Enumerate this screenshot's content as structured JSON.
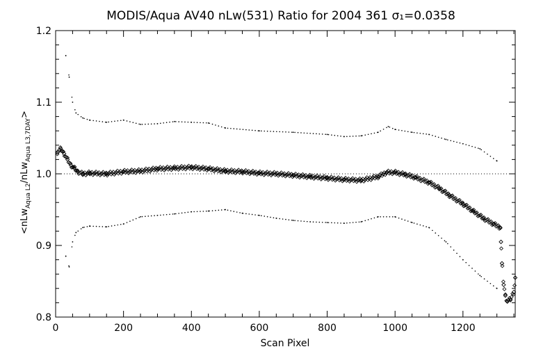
{
  "chart_data": {
    "type": "scatter",
    "title": "MODIS/Aqua AV40 nLw(531) Ratio for 2004 361 σ₁=0.0358",
    "xlabel": "Scan Pixel",
    "ylabel": "<nLw_Aqua L2/nLw_Aqua L3,7DAY>",
    "xlim": [
      0,
      1354
    ],
    "ylim": [
      0.8,
      1.2
    ],
    "xticks": [
      0,
      200,
      400,
      600,
      800,
      1000,
      1200
    ],
    "yticks": [
      0.8,
      0.9,
      1.0,
      1.1,
      1.2
    ],
    "ytick_labels": [
      "0.8",
      "0.9",
      "1.0",
      "1.1",
      "1.2"
    ],
    "reference_line_y": 1.0,
    "grid": false,
    "series": [
      {
        "role": "ratio",
        "marker": "diamond",
        "points": [
          [
            5,
            1.03
          ],
          [
            15,
            1.035
          ],
          [
            25,
            1.028
          ],
          [
            35,
            1.02
          ],
          [
            45,
            1.012
          ],
          [
            55,
            1.008
          ],
          [
            65,
            1.003
          ],
          [
            80,
            1.0
          ],
          [
            100,
            1.001
          ],
          [
            150,
            1.0
          ],
          [
            200,
            1.003
          ],
          [
            250,
            1.004
          ],
          [
            300,
            1.007
          ],
          [
            350,
            1.008
          ],
          [
            400,
            1.009
          ],
          [
            450,
            1.007
          ],
          [
            500,
            1.004
          ],
          [
            550,
            1.003
          ],
          [
            600,
            1.001
          ],
          [
            650,
            1.0
          ],
          [
            700,
            0.998
          ],
          [
            750,
            0.996
          ],
          [
            800,
            0.994
          ],
          [
            850,
            0.992
          ],
          [
            900,
            0.991
          ],
          [
            950,
            0.996
          ],
          [
            975,
            1.002
          ],
          [
            1000,
            1.002
          ],
          [
            1030,
            0.999
          ],
          [
            1060,
            0.995
          ],
          [
            1100,
            0.988
          ],
          [
            1130,
            0.98
          ],
          [
            1160,
            0.97
          ],
          [
            1200,
            0.958
          ],
          [
            1230,
            0.948
          ],
          [
            1260,
            0.938
          ],
          [
            1290,
            0.93
          ],
          [
            1310,
            0.925
          ],
          [
            1312,
            0.905
          ],
          [
            1315,
            0.875
          ],
          [
            1320,
            0.845
          ],
          [
            1325,
            0.83
          ],
          [
            1330,
            0.822
          ],
          [
            1340,
            0.825
          ],
          [
            1350,
            0.835
          ],
          [
            1354,
            0.855
          ]
        ]
      },
      {
        "role": "upper-bound",
        "marker": "dot",
        "points": [
          [
            30,
            1.165
          ],
          [
            40,
            1.135
          ],
          [
            50,
            1.1
          ],
          [
            60,
            1.085
          ],
          [
            80,
            1.078
          ],
          [
            100,
            1.075
          ],
          [
            150,
            1.072
          ],
          [
            200,
            1.075
          ],
          [
            250,
            1.069
          ],
          [
            300,
            1.07
          ],
          [
            350,
            1.073
          ],
          [
            400,
            1.072
          ],
          [
            450,
            1.071
          ],
          [
            500,
            1.064
          ],
          [
            600,
            1.06
          ],
          [
            700,
            1.058
          ],
          [
            800,
            1.055
          ],
          [
            850,
            1.052
          ],
          [
            900,
            1.053
          ],
          [
            950,
            1.058
          ],
          [
            980,
            1.066
          ],
          [
            1000,
            1.062
          ],
          [
            1050,
            1.058
          ],
          [
            1100,
            1.055
          ],
          [
            1150,
            1.048
          ],
          [
            1200,
            1.042
          ],
          [
            1250,
            1.035
          ],
          [
            1300,
            1.018
          ]
        ]
      },
      {
        "role": "lower-bound",
        "marker": "dot",
        "points": [
          [
            30,
            0.885
          ],
          [
            40,
            0.87
          ],
          [
            50,
            0.905
          ],
          [
            60,
            0.918
          ],
          [
            80,
            0.925
          ],
          [
            100,
            0.927
          ],
          [
            150,
            0.926
          ],
          [
            200,
            0.93
          ],
          [
            250,
            0.94
          ],
          [
            300,
            0.942
          ],
          [
            350,
            0.944
          ],
          [
            400,
            0.947
          ],
          [
            450,
            0.948
          ],
          [
            500,
            0.95
          ],
          [
            550,
            0.945
          ],
          [
            600,
            0.942
          ],
          [
            650,
            0.938
          ],
          [
            700,
            0.935
          ],
          [
            750,
            0.933
          ],
          [
            800,
            0.932
          ],
          [
            850,
            0.931
          ],
          [
            900,
            0.933
          ],
          [
            950,
            0.94
          ],
          [
            1000,
            0.94
          ],
          [
            1050,
            0.932
          ],
          [
            1100,
            0.925
          ],
          [
            1150,
            0.905
          ],
          [
            1200,
            0.88
          ],
          [
            1250,
            0.858
          ],
          [
            1300,
            0.84
          ]
        ]
      }
    ]
  }
}
